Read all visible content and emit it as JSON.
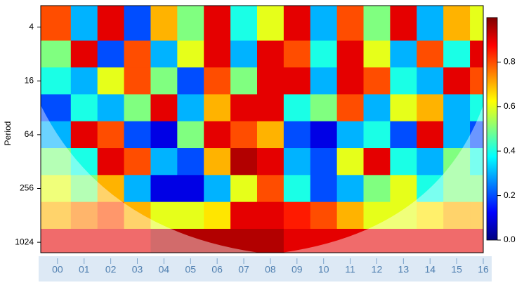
{
  "chart_data": {
    "type": "heatmap",
    "y_label": "Period",
    "x": [
      0,
      1,
      2,
      3,
      4,
      5,
      6,
      7,
      8,
      9,
      10,
      11,
      12,
      13,
      14,
      15,
      16
    ],
    "y": [
      4,
      8,
      16,
      32,
      64,
      128,
      256,
      512,
      1024
    ],
    "z": [
      [
        0.8,
        0.3,
        0.9,
        0.2,
        0.7,
        0.5,
        0.9,
        0.4,
        0.6,
        0.9,
        0.3,
        0.8,
        0.5,
        0.9,
        0.3,
        0.7,
        0.6
      ],
      [
        0.5,
        0.9,
        0.2,
        0.8,
        0.3,
        0.6,
        0.9,
        0.3,
        0.9,
        0.8,
        0.4,
        0.9,
        0.6,
        0.3,
        0.8,
        0.4,
        0.9
      ],
      [
        0.4,
        0.3,
        0.6,
        0.8,
        0.5,
        0.2,
        0.8,
        0.5,
        0.9,
        0.9,
        0.3,
        0.9,
        0.8,
        0.4,
        0.3,
        0.9,
        0.8
      ],
      [
        0.2,
        0.4,
        0.3,
        0.5,
        0.9,
        0.3,
        0.7,
        0.9,
        0.9,
        0.4,
        0.5,
        0.8,
        0.3,
        0.6,
        0.7,
        0.3,
        0.4
      ],
      [
        0.3,
        0.9,
        0.8,
        0.2,
        0.1,
        0.5,
        0.9,
        0.8,
        0.7,
        0.2,
        0.1,
        0.3,
        0.4,
        0.2,
        0.9,
        0.3,
        0.2
      ],
      [
        0.5,
        0.4,
        0.9,
        0.8,
        0.3,
        0.2,
        0.7,
        0.95,
        0.9,
        0.3,
        0.2,
        0.6,
        0.9,
        0.4,
        0.3,
        0.5,
        0.4
      ],
      [
        0.6,
        0.5,
        0.7,
        0.3,
        0.1,
        0.1,
        0.3,
        0.6,
        0.8,
        0.4,
        0.2,
        0.3,
        0.5,
        0.6,
        0.4,
        0.5,
        0.5
      ],
      [
        0.7,
        0.75,
        0.8,
        0.7,
        0.6,
        0.6,
        0.65,
        0.9,
        0.9,
        0.85,
        0.8,
        0.7,
        0.6,
        0.6,
        0.65,
        0.7,
        0.7
      ],
      [
        0.9,
        0.9,
        0.9,
        0.9,
        0.95,
        0.95,
        0.95,
        0.95,
        0.95,
        0.9,
        0.9,
        0.9,
        0.9,
        0.9,
        0.9,
        0.9,
        0.9
      ]
    ],
    "xlim": [
      -0.63,
      16
    ],
    "xticks": [
      {
        "value": 0,
        "label": "00"
      },
      {
        "value": 1,
        "label": "01"
      },
      {
        "value": 2,
        "label": "02"
      },
      {
        "value": 3,
        "label": "03"
      },
      {
        "value": 4,
        "label": "04"
      },
      {
        "value": 5,
        "label": "05"
      },
      {
        "value": 6,
        "label": "06"
      },
      {
        "value": 7,
        "label": "07"
      },
      {
        "value": 8,
        "label": "08"
      },
      {
        "value": 9,
        "label": "09"
      },
      10,
      11,
      12,
      13,
      14,
      15,
      16
    ],
    "ylim": [
      2.3,
      1340
    ],
    "yticks": [
      4,
      16,
      64,
      256,
      1024
    ],
    "y_log": true,
    "zlim": [
      0,
      1
    ],
    "zticks": [
      {
        "value": 0,
        "label": "0.0"
      },
      0.2,
      0.4,
      0.6,
      0.8
    ],
    "colorscale": [
      "#00007f",
      "#0000ff",
      "#0080ff",
      "#00ffff",
      "#80ff80",
      "#ffff00",
      "#ff8000",
      "#ff0000",
      "#7f0000"
    ]
  }
}
